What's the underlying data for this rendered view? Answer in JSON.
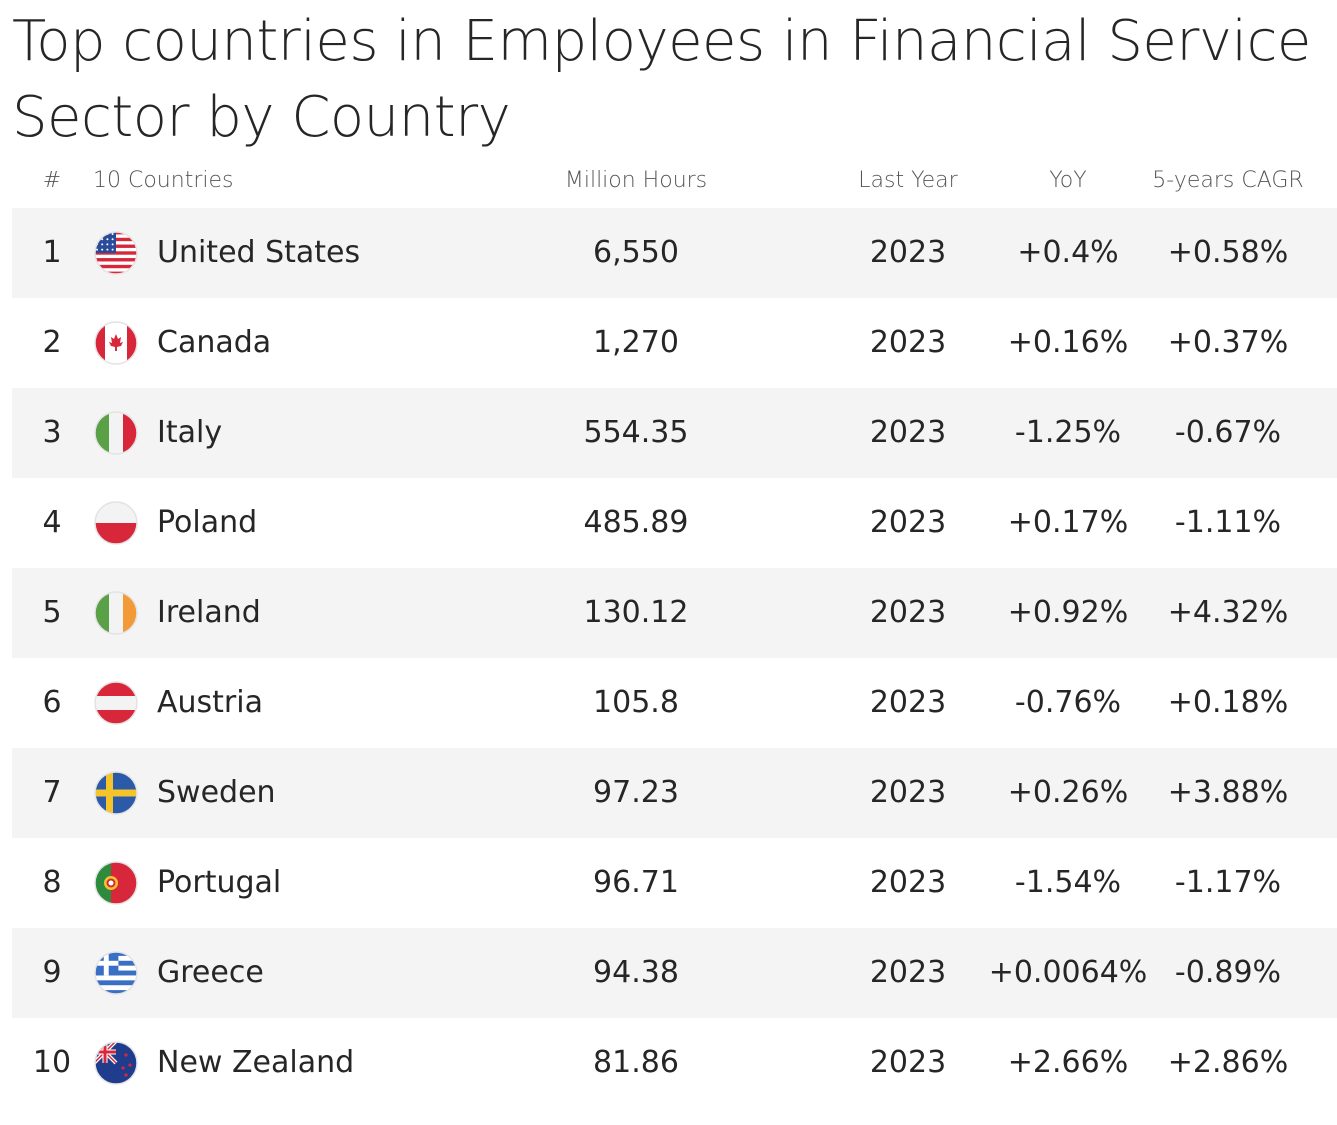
{
  "chart_data": {
    "type": "table",
    "title": "Top countries in Employees in Financial Service Sector by Country",
    "columns": [
      "#",
      "10 Countries",
      "Million Hours",
      "Last Year",
      "YoY",
      "5-years CAGR"
    ],
    "rows": [
      {
        "rank": "1",
        "country": "United States",
        "flag": "us-flag-icon",
        "value": "6,550",
        "year": "2023",
        "yoy": "+0.4%",
        "cagr": "+0.58%"
      },
      {
        "rank": "2",
        "country": "Canada",
        "flag": "canada-flag-icon",
        "value": "1,270",
        "year": "2023",
        "yoy": "+0.16%",
        "cagr": "+0.37%"
      },
      {
        "rank": "3",
        "country": "Italy",
        "flag": "italy-flag-icon",
        "value": "554.35",
        "year": "2023",
        "yoy": "-1.25%",
        "cagr": "-0.67%"
      },
      {
        "rank": "4",
        "country": "Poland",
        "flag": "poland-flag-icon",
        "value": "485.89",
        "year": "2023",
        "yoy": "+0.17%",
        "cagr": "-1.11%"
      },
      {
        "rank": "5",
        "country": "Ireland",
        "flag": "ireland-flag-icon",
        "value": "130.12",
        "year": "2023",
        "yoy": "+0.92%",
        "cagr": "+4.32%"
      },
      {
        "rank": "6",
        "country": "Austria",
        "flag": "austria-flag-icon",
        "value": "105.8",
        "year": "2023",
        "yoy": "-0.76%",
        "cagr": "+0.18%"
      },
      {
        "rank": "7",
        "country": "Sweden",
        "flag": "sweden-flag-icon",
        "value": "97.23",
        "year": "2023",
        "yoy": "+0.26%",
        "cagr": "+3.88%"
      },
      {
        "rank": "8",
        "country": "Portugal",
        "flag": "portugal-flag-icon",
        "value": "96.71",
        "year": "2023",
        "yoy": "-1.54%",
        "cagr": "-1.17%"
      },
      {
        "rank": "9",
        "country": "Greece",
        "flag": "greece-flag-icon",
        "value": "94.38",
        "year": "2023",
        "yoy": "+0.0064%",
        "cagr": "-0.89%"
      },
      {
        "rank": "10",
        "country": "New Zealand",
        "flag": "new-zealand-flag-icon",
        "value": "81.86",
        "year": "2023",
        "yoy": "+2.66%",
        "cagr": "+2.86%"
      }
    ]
  }
}
